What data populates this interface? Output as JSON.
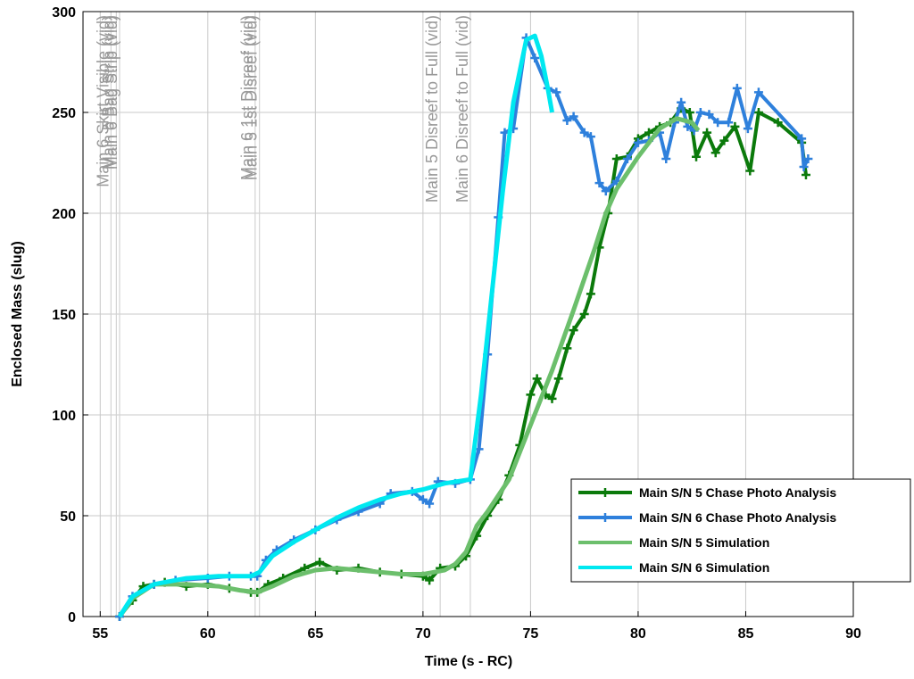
{
  "chart_data": {
    "type": "line",
    "x_label": "Time (s - RC)",
    "y_label": "Enclosed Mass (slug)",
    "xlim": [
      54.2,
      90
    ],
    "ylim": [
      0,
      300
    ],
    "xticks": [
      55,
      60,
      65,
      70,
      75,
      80,
      85,
      90
    ],
    "yticks": [
      0,
      50,
      100,
      150,
      200,
      250,
      300
    ],
    "grid": true,
    "legend": "lower right",
    "events": [
      {
        "x": 55.5,
        "label": "Main 6 Skirt Visible (vid)"
      },
      {
        "x": 55.75,
        "label": "Main 5 Bag Strip (vid)"
      },
      {
        "x": 55.9,
        "label": "Main 6 Bag Strip (vid)"
      },
      {
        "x": 62.2,
        "label": "Main 6 1st Disreef (vid)"
      },
      {
        "x": 62.4,
        "label": "Main 5 1st Disreef (vid)"
      },
      {
        "x": 70.8,
        "label": "Main 5 Disreef to Full (vid)"
      },
      {
        "x": 72.2,
        "label": "Main 6 Disreef to Full (vid)"
      }
    ],
    "series": [
      {
        "name": "Main S/N 5 Chase Photo Analysis",
        "color": "#0b7a0b",
        "marker": "+",
        "x": [
          55.9,
          56.5,
          57,
          57.5,
          58,
          59,
          60,
          61,
          62,
          62.3,
          62.8,
          63.5,
          64.5,
          65.2,
          66,
          67,
          68,
          69,
          70,
          70.3,
          70.8,
          71.5,
          72,
          72.5,
          73,
          73.5,
          74,
          74.5,
          75,
          75.3,
          75.7,
          76,
          76.3,
          76.7,
          77,
          77.5,
          77.8,
          78.2,
          78.6,
          79,
          79.5,
          80,
          80.5,
          81,
          81.5,
          82,
          82.4,
          82.7,
          83.2,
          83.6,
          84,
          84.5,
          85.2,
          85.6,
          86.5,
          87.6,
          87.8
        ],
        "values": [
          0,
          8,
          15,
          16,
          17,
          15,
          16,
          14,
          12,
          12,
          16,
          19,
          24,
          27,
          23,
          24,
          22,
          21,
          20,
          18,
          24,
          25,
          30,
          40,
          50,
          58,
          70,
          85,
          110,
          118,
          110,
          108,
          118,
          133,
          142,
          150,
          160,
          183,
          200,
          227,
          228,
          237,
          240,
          243,
          245,
          252,
          250,
          228,
          240,
          230,
          236,
          243,
          221,
          250,
          245,
          235,
          219
        ]
      },
      {
        "name": "Main S/N 6 Chase Photo Analysis",
        "color": "#2e80dc",
        "marker": "+",
        "x": [
          55.9,
          56.5,
          57.5,
          58.5,
          60,
          61,
          62,
          62.3,
          62.7,
          63.2,
          64,
          65,
          66,
          67,
          68,
          68.5,
          69.5,
          70,
          70.3,
          70.7,
          71.5,
          72.2,
          72.6,
          73,
          73.5,
          73.8,
          74.2,
          74.8,
          75.2,
          75.8,
          76.2,
          76.7,
          77,
          77.5,
          77.8,
          78.2,
          78.5,
          79,
          79.5,
          80,
          80.5,
          81,
          81.3,
          81.7,
          82,
          82.3,
          82.6,
          82.9,
          83.3,
          83.7,
          84.2,
          84.6,
          85.1,
          85.6,
          87.6,
          87.7,
          87.9
        ],
        "values": [
          0,
          10,
          16,
          18,
          19,
          20,
          20,
          20,
          28,
          33,
          38,
          43,
          48,
          52,
          56,
          61,
          62,
          58,
          56,
          67,
          66,
          68,
          83,
          130,
          198,
          240,
          242,
          287,
          277,
          262,
          260,
          246,
          248,
          240,
          238,
          215,
          211,
          216,
          227,
          235,
          236,
          240,
          227,
          245,
          255,
          243,
          241,
          250,
          249,
          245,
          245,
          262,
          242,
          260,
          237,
          223,
          227
        ]
      },
      {
        "name": "Main S/N 5 Simulation",
        "color": "#6cbf6c",
        "marker": "none",
        "x": [
          55.9,
          56.5,
          57.5,
          59,
          60.5,
          61.5,
          62.3,
          63,
          64,
          65,
          66,
          67,
          68,
          69,
          70,
          71,
          71.5,
          72,
          72.5,
          73,
          74,
          75,
          76,
          77,
          78,
          78.5,
          79,
          80,
          81,
          81.8,
          82.5,
          82.8
        ],
        "values": [
          0,
          9,
          16,
          16,
          15,
          13,
          12,
          15,
          20,
          23,
          24,
          23,
          22,
          21,
          21,
          23,
          26,
          32,
          45,
          52,
          68,
          95,
          122,
          152,
          183,
          200,
          212,
          228,
          242,
          247,
          245,
          241
        ]
      },
      {
        "name": "Main S/N 6 Simulation",
        "color": "#00e8f0",
        "marker": "none",
        "x": [
          55.9,
          56.5,
          57.5,
          59,
          60.5,
          62,
          62.4,
          63,
          64,
          65,
          66,
          67,
          68,
          69,
          70,
          71,
          72.2,
          72.7,
          73.2,
          73.7,
          74.2,
          74.8,
          75.2,
          75.5,
          75.8,
          76
        ],
        "values": [
          0,
          10,
          16,
          19,
          20,
          20,
          22,
          30,
          37,
          43,
          49,
          54,
          58,
          61,
          63,
          66,
          68,
          110,
          160,
          210,
          255,
          286,
          288,
          278,
          262,
          250
        ]
      }
    ]
  }
}
